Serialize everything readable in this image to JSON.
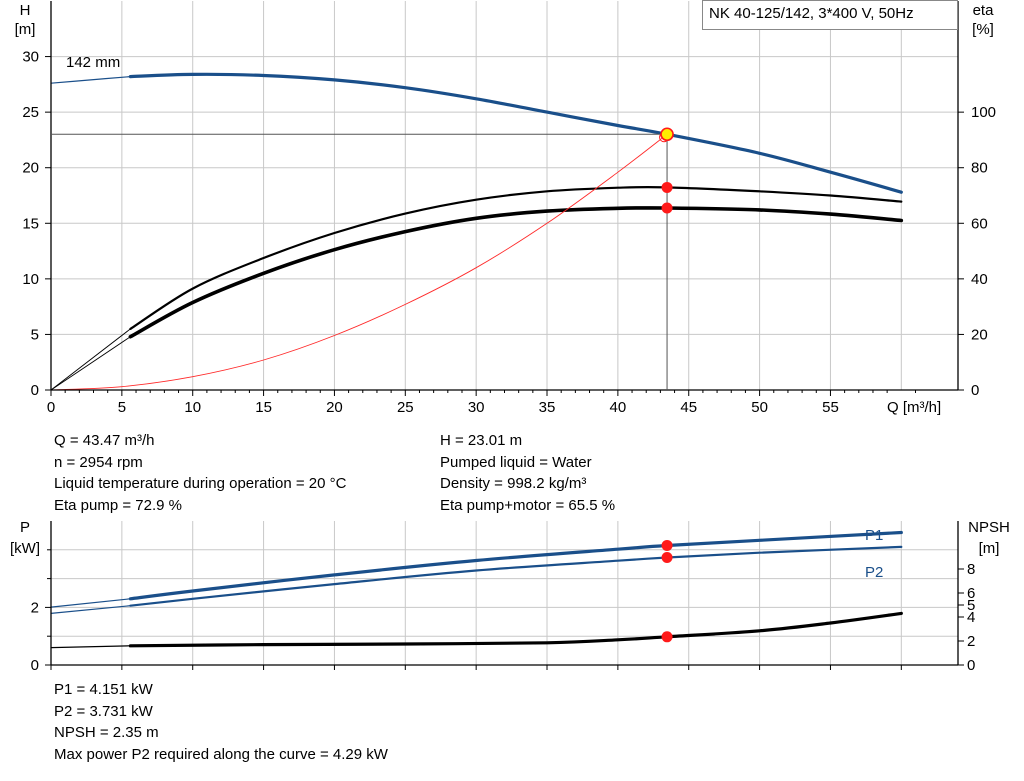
{
  "chart_data": [
    {
      "type": "line",
      "title": "NK 40-125/142, 3*400 V, 50Hz",
      "xlabel": "Q [m³/h]",
      "ylabel_left": [
        "H",
        "[m]"
      ],
      "ylabel_right": [
        "eta",
        "[%]"
      ],
      "xlim": [
        0,
        64
      ],
      "ylim_left": [
        0,
        35
      ],
      "ylim_right": [
        0,
        140
      ],
      "x_ticks": [
        "0",
        "5",
        "10",
        "15",
        "20",
        "25",
        "30",
        "35",
        "40",
        "45",
        "50",
        "55"
      ],
      "y_ticks_left": [
        "0",
        "5",
        "10",
        "15",
        "20",
        "25",
        "30"
      ],
      "y_ticks_right": [
        "0",
        "20",
        "40",
        "60",
        "80",
        "100"
      ],
      "grid": true,
      "annotation": "142 mm",
      "series": [
        {
          "key": "H",
          "color": "#1a4f8a",
          "axis": "left",
          "x": [
            5.6,
            10,
            15,
            20,
            25,
            30,
            35,
            40,
            43.47,
            50,
            55,
            60
          ],
          "y": [
            28.2,
            28.4,
            28.3,
            27.9,
            27.2,
            26.2,
            25.0,
            23.8,
            23.01,
            21.3,
            19.6,
            17.8
          ]
        },
        {
          "key": "H_ext",
          "color": "#1a4f8a",
          "axis": "left",
          "x": [
            0,
            2.8,
            5.6
          ],
          "y": [
            27.6,
            27.9,
            28.2
          ]
        },
        {
          "key": "eta_pump",
          "color": "#000000",
          "axis": "right",
          "x": [
            5.6,
            10,
            15,
            20,
            25,
            30,
            35,
            40,
            43.47,
            50,
            55,
            60
          ],
          "y": [
            22,
            36.5,
            47.5,
            56.5,
            63.5,
            68.5,
            71.5,
            72.8,
            72.9,
            71.5,
            70,
            67.8
          ]
        },
        {
          "key": "eta_pump_motor",
          "color": "#000000",
          "axis": "right",
          "x": [
            5.6,
            10,
            15,
            20,
            25,
            30,
            35,
            40,
            43.47,
            50,
            55,
            60
          ],
          "y": [
            19.2,
            31.5,
            42,
            50.5,
            57,
            61.8,
            64.4,
            65.4,
            65.5,
            64.8,
            63.3,
            61
          ]
        },
        {
          "key": "eta_pump_ext",
          "color": "#000000",
          "axis": "right",
          "x": [
            0,
            5.6
          ],
          "y": [
            0,
            22
          ]
        },
        {
          "key": "eta_pump_motor_ext",
          "color": "#000000",
          "axis": "right",
          "x": [
            0,
            5.6
          ],
          "y": [
            0,
            19.2
          ]
        },
        {
          "key": "system",
          "color": "#ff2a2a",
          "axis": "left",
          "x": [
            0,
            5,
            10,
            15,
            20,
            25,
            30,
            35,
            40,
            43.47
          ],
          "y": [
            0,
            0.3,
            1.2,
            2.7,
            4.9,
            7.7,
            11.0,
            15.0,
            19.6,
            23.01
          ]
        }
      ],
      "duty_point": {
        "Q": 43.47,
        "H": 23.01,
        "eta_pump": 72.9,
        "eta_pump_motor": 65.5
      },
      "readouts": [
        "Q = 43.47 m³/h",
        "n = 2954 rpm",
        "Liquid temperature during operation = 20 °C",
        "Eta pump = 72.9 %"
      ],
      "readouts_right": [
        "H = 23.01 m",
        "Pumped liquid = Water",
        "Density = 998.2 kg/m³",
        "Eta pump+motor = 65.5 %"
      ]
    },
    {
      "type": "line",
      "ylabel_left": [
        "P",
        "[kW]"
      ],
      "ylabel_right": [
        "NPSH",
        "[m]"
      ],
      "xlim": [
        0,
        64
      ],
      "ylim_left": [
        0,
        5
      ],
      "ylim_right": [
        0,
        12
      ],
      "y_ticks_left": [
        "0",
        "2"
      ],
      "y_ticks_right": [
        "0",
        "2",
        "4",
        "5",
        "6",
        "8"
      ],
      "grid": true,
      "series": [
        {
          "name": "P1",
          "key": "P1",
          "color": "#1a4f8a",
          "axis": "left",
          "x": [
            5.6,
            10,
            20,
            30,
            40,
            43.47,
            50,
            60
          ],
          "y": [
            2.3,
            2.57,
            3.13,
            3.63,
            4.02,
            4.151,
            4.33,
            4.6
          ]
        },
        {
          "key": "P1_ext",
          "color": "#1a4f8a",
          "axis": "left",
          "x": [
            0,
            5.6
          ],
          "y": [
            2.01,
            2.3
          ]
        },
        {
          "name": "P2",
          "key": "P2",
          "color": "#1a4f8a",
          "axis": "left",
          "x": [
            5.6,
            10,
            20,
            30,
            40,
            43.47,
            50,
            60
          ],
          "y": [
            2.06,
            2.3,
            2.81,
            3.28,
            3.62,
            3.731,
            3.9,
            4.1
          ]
        },
        {
          "key": "P2_ext",
          "color": "#1a4f8a",
          "axis": "left",
          "x": [
            0,
            5.6
          ],
          "y": [
            1.79,
            2.06
          ]
        },
        {
          "key": "NPSH",
          "color": "#000000",
          "axis": "right",
          "x": [
            5.6,
            15,
            25,
            35,
            40,
            43.47,
            50,
            55,
            60
          ],
          "y": [
            1.6,
            1.7,
            1.75,
            1.85,
            2.1,
            2.35,
            2.85,
            3.5,
            4.3
          ]
        },
        {
          "key": "NPSH_ext",
          "color": "#000000",
          "axis": "right",
          "x": [
            0,
            5.6
          ],
          "y": [
            1.45,
            1.6
          ]
        }
      ],
      "duty_point": {
        "Q": 43.47,
        "P1": 4.151,
        "P2": 3.731,
        "NPSH": 2.35
      },
      "readouts": [
        "P1 = 4.151 kW",
        "P2 = 3.731 kW",
        "NPSH = 2.35 m",
        "Max power P2 required along the curve = 4.29 kW"
      ]
    }
  ]
}
